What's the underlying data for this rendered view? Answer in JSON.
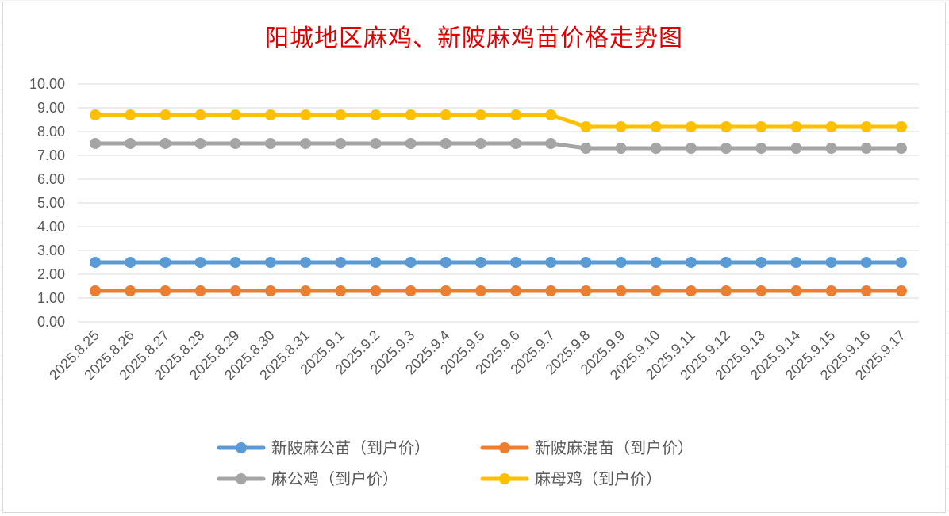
{
  "chart_data": {
    "type": "line",
    "title": "阳城地区麻鸡、新陂麻鸡苗价格走势图",
    "xlabel": "",
    "ylabel": "",
    "ylim": [
      0,
      10
    ],
    "ytick_step": 1,
    "grid": true,
    "legend_position": "bottom",
    "categories": [
      "2025.8.25",
      "2025.8.26",
      "2025.8.27",
      "2025.8.28",
      "2025.8.29",
      "2025.8.30",
      "2025.8.31",
      "2025.9.1",
      "2025.9.2",
      "2025.9.3",
      "2025.9.4",
      "2025.9.5",
      "2025.9.6",
      "2025.9.7",
      "2025.9.8",
      "2025.9.9",
      "2025.9.10",
      "2025.9.11",
      "2025.9.12",
      "2025.9.13",
      "2025.9.14",
      "2025.9.15",
      "2025.9.16",
      "2025.9.17"
    ],
    "series": [
      {
        "name": "新陂麻公苗（到户价）",
        "color": "#5b9bd5",
        "values": [
          2.5,
          2.5,
          2.5,
          2.5,
          2.5,
          2.5,
          2.5,
          2.5,
          2.5,
          2.5,
          2.5,
          2.5,
          2.5,
          2.5,
          2.5,
          2.5,
          2.5,
          2.5,
          2.5,
          2.5,
          2.5,
          2.5,
          2.5,
          2.5
        ]
      },
      {
        "name": "新陂麻混苗（到户价）",
        "color": "#ed7d31",
        "values": [
          1.3,
          1.3,
          1.3,
          1.3,
          1.3,
          1.3,
          1.3,
          1.3,
          1.3,
          1.3,
          1.3,
          1.3,
          1.3,
          1.3,
          1.3,
          1.3,
          1.3,
          1.3,
          1.3,
          1.3,
          1.3,
          1.3,
          1.3,
          1.3
        ]
      },
      {
        "name": "麻公鸡（到户价）",
        "color": "#a5a5a5",
        "values": [
          7.5,
          7.5,
          7.5,
          7.5,
          7.5,
          7.5,
          7.5,
          7.5,
          7.5,
          7.5,
          7.5,
          7.5,
          7.5,
          7.5,
          7.3,
          7.3,
          7.3,
          7.3,
          7.3,
          7.3,
          7.3,
          7.3,
          7.3,
          7.3
        ]
      },
      {
        "name": "麻母鸡（到户价）",
        "color": "#ffc000",
        "values": [
          8.7,
          8.7,
          8.7,
          8.7,
          8.7,
          8.7,
          8.7,
          8.7,
          8.7,
          8.7,
          8.7,
          8.7,
          8.7,
          8.7,
          8.2,
          8.2,
          8.2,
          8.2,
          8.2,
          8.2,
          8.2,
          8.2,
          8.2,
          8.2
        ]
      }
    ]
  }
}
